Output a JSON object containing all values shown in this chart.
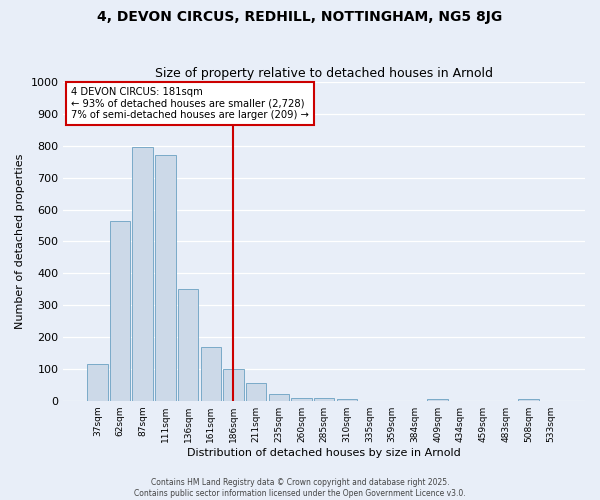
{
  "title": "4, DEVON CIRCUS, REDHILL, NOTTINGHAM, NG5 8JG",
  "subtitle": "Size of property relative to detached houses in Arnold",
  "xlabel": "Distribution of detached houses by size in Arnold",
  "ylabel": "Number of detached properties",
  "bar_labels": [
    "37sqm",
    "62sqm",
    "87sqm",
    "111sqm",
    "136sqm",
    "161sqm",
    "186sqm",
    "211sqm",
    "235sqm",
    "260sqm",
    "285sqm",
    "310sqm",
    "335sqm",
    "359sqm",
    "384sqm",
    "409sqm",
    "434sqm",
    "459sqm",
    "483sqm",
    "508sqm",
    "533sqm"
  ],
  "bar_values": [
    115,
    565,
    795,
    770,
    350,
    170,
    100,
    55,
    20,
    10,
    10,
    5,
    0,
    0,
    0,
    5,
    0,
    0,
    0,
    5,
    0
  ],
  "bar_color": "#ccd9e8",
  "bar_edge_color": "#7aaac8",
  "vline_x_index": 6,
  "vline_color": "#cc0000",
  "ylim": [
    0,
    1000
  ],
  "yticks": [
    0,
    100,
    200,
    300,
    400,
    500,
    600,
    700,
    800,
    900,
    1000
  ],
  "annotation_title": "4 DEVON CIRCUS: 181sqm",
  "annotation_line1": "← 93% of detached houses are smaller (2,728)",
  "annotation_line2": "7% of semi-detached houses are larger (209) →",
  "annotation_box_facecolor": "#ffffff",
  "annotation_box_edgecolor": "#cc0000",
  "footer_line1": "Contains HM Land Registry data © Crown copyright and database right 2025.",
  "footer_line2": "Contains public sector information licensed under the Open Government Licence v3.0.",
  "background_color": "#e8eef8",
  "grid_color": "#ffffff",
  "ax_facecolor": "#e8eef8"
}
